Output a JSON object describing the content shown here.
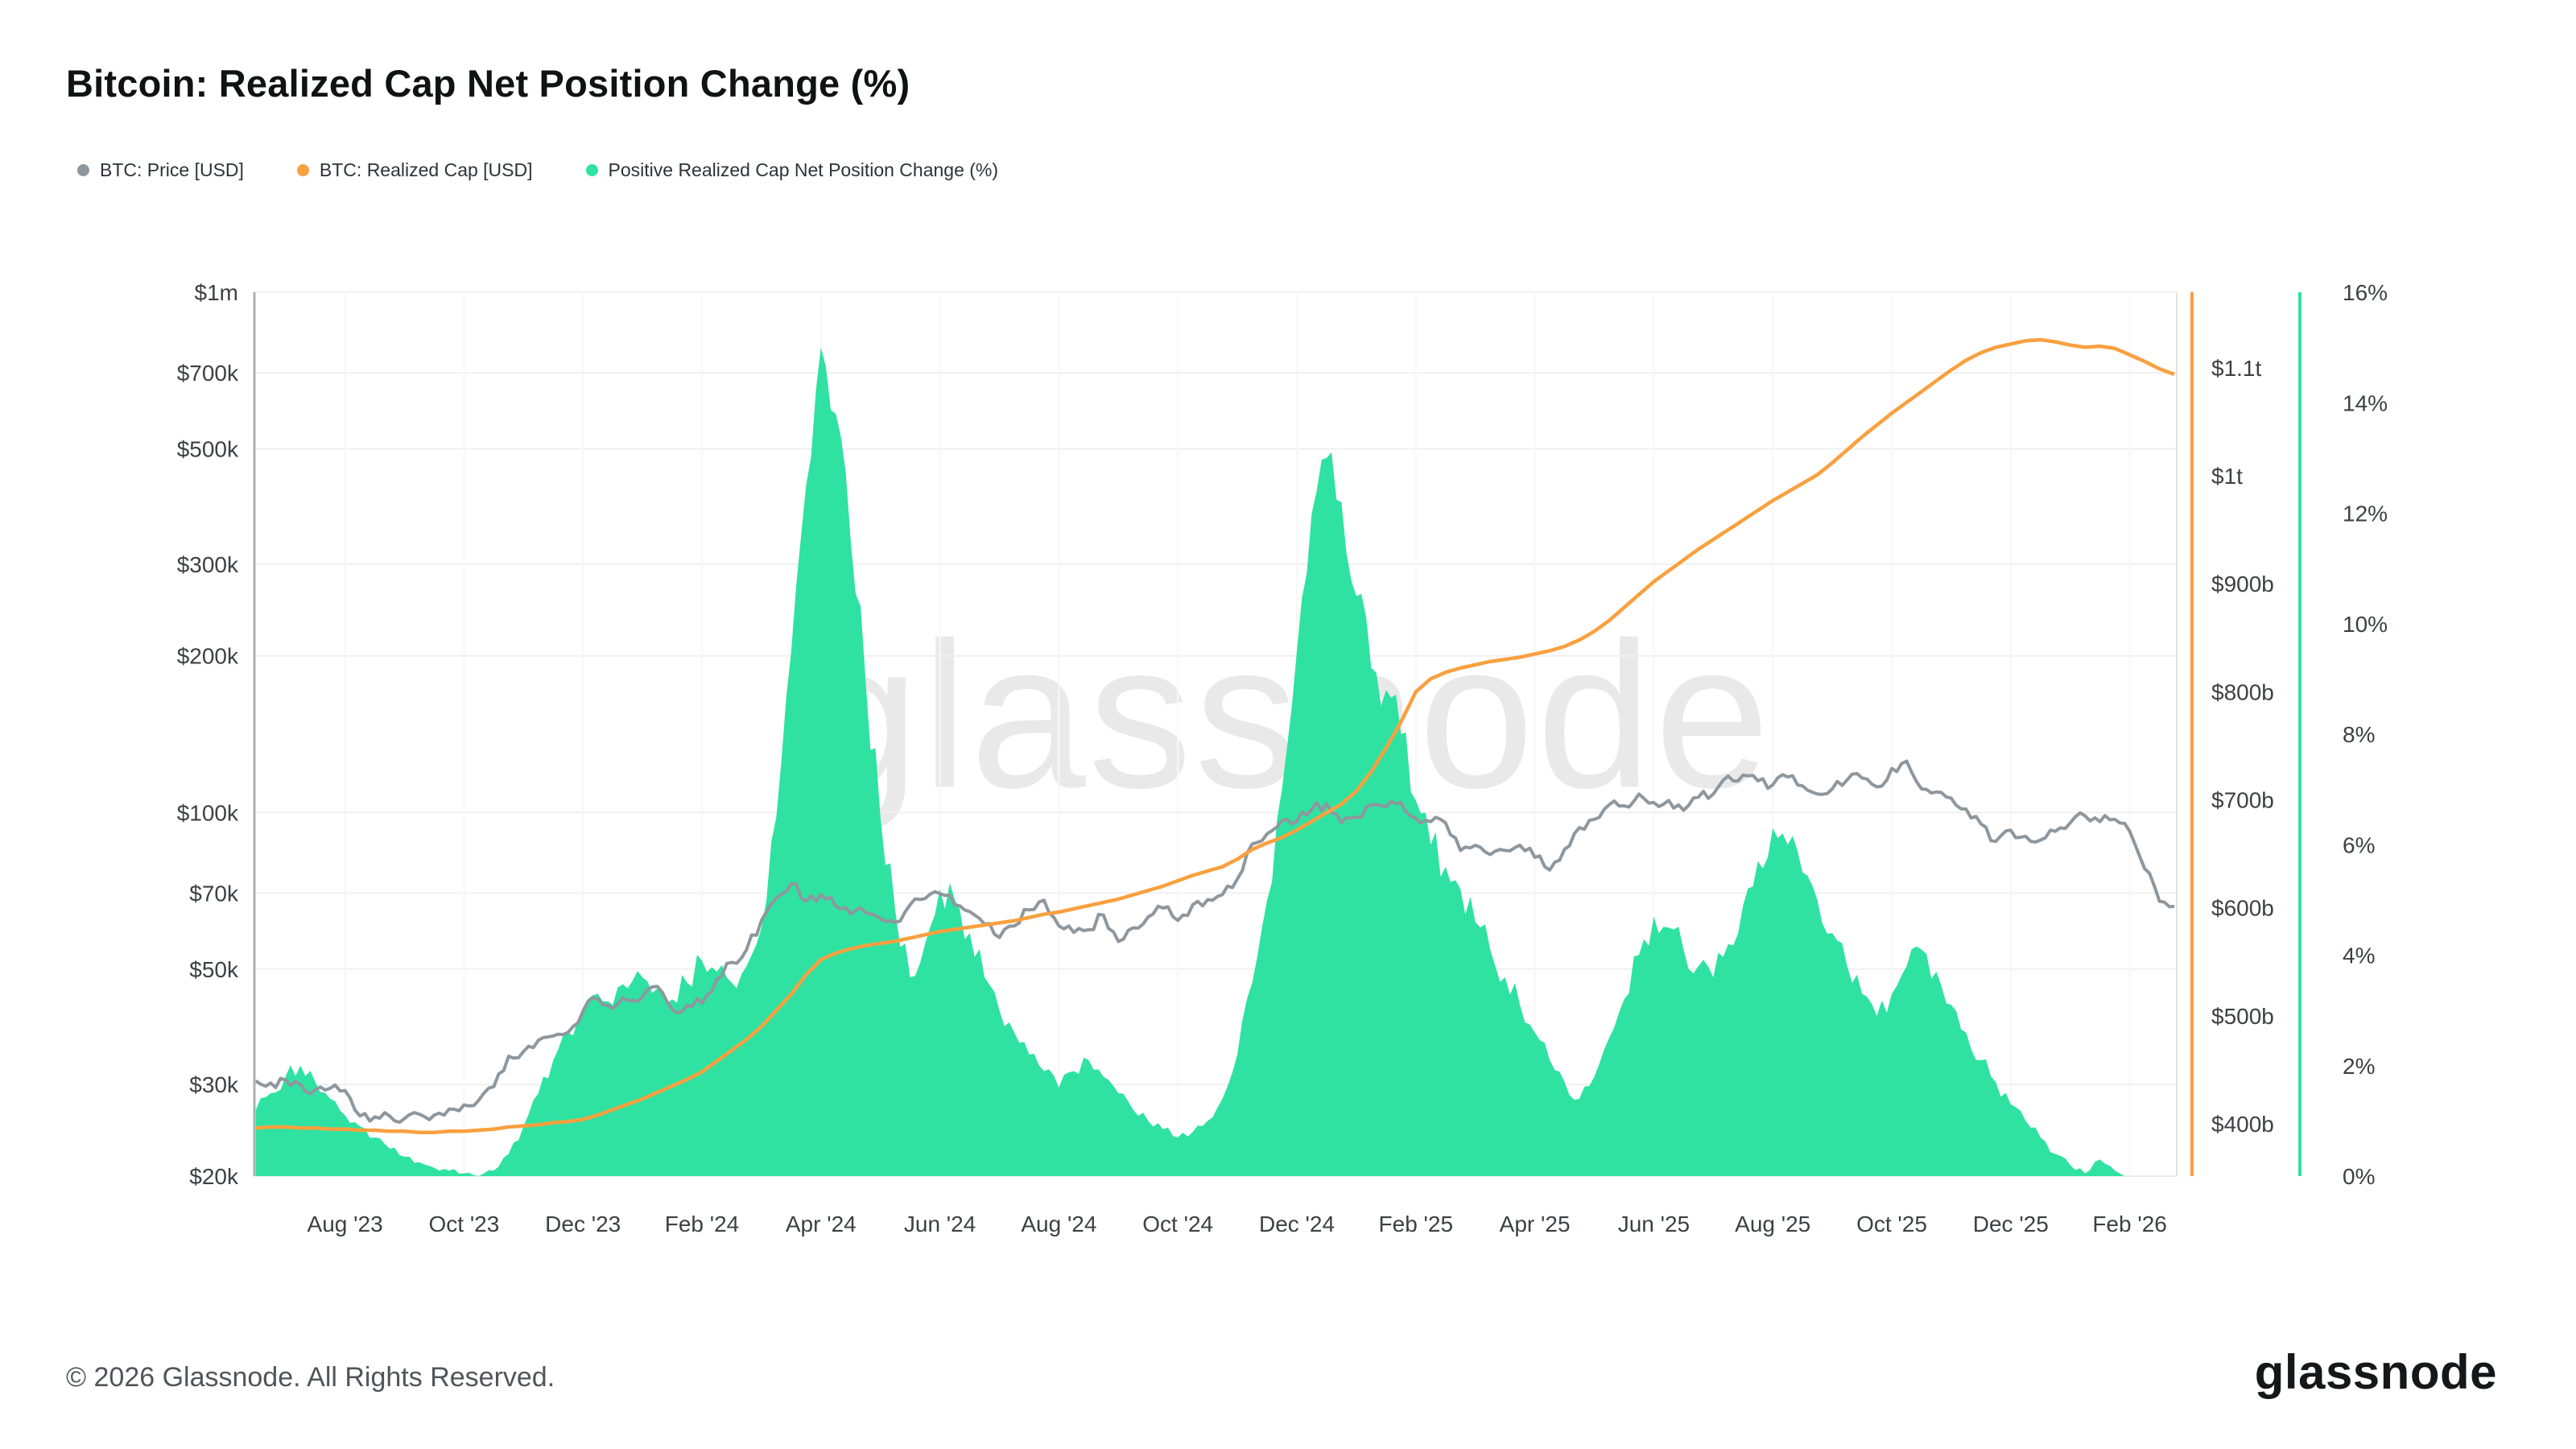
{
  "title": "Bitcoin: Realized Cap Net Position Change (%)",
  "watermark": "glassnode",
  "footer": {
    "copyright": "© 2026 Glassnode. All Rights Reserved.",
    "brand": "glassnode"
  },
  "legend": [
    {
      "label": "BTC: Price [USD]",
      "color": "#8e979e"
    },
    {
      "label": "BTC: Realized Cap [USD]",
      "color": "#f9a03f"
    },
    {
      "label": "Positive Realized Cap Net Position Change (%)",
      "color": "#2fe2a2"
    }
  ],
  "chart_data": {
    "type": "area+line",
    "title": "Bitcoin: Realized Cap Net Position Change (%)",
    "x_start_month": -0.5,
    "x_step_month": 0.25,
    "x_domain": [
      -0.524,
      31.79
    ],
    "x_ticks": [
      {
        "m": 1,
        "label": "Aug '23"
      },
      {
        "m": 3,
        "label": "Oct '23"
      },
      {
        "m": 5,
        "label": "Dec '23"
      },
      {
        "m": 7,
        "label": "Feb '24"
      },
      {
        "m": 9,
        "label": "Apr '24"
      },
      {
        "m": 11,
        "label": "Jun '24"
      },
      {
        "m": 13,
        "label": "Aug '24"
      },
      {
        "m": 15,
        "label": "Oct '24"
      },
      {
        "m": 17,
        "label": "Dec '24"
      },
      {
        "m": 19,
        "label": "Feb '25"
      },
      {
        "m": 21,
        "label": "Apr '25"
      },
      {
        "m": 23,
        "label": "Jun '25"
      },
      {
        "m": 25,
        "label": "Aug '25"
      },
      {
        "m": 27,
        "label": "Oct '25"
      },
      {
        "m": 29,
        "label": "Dec '25"
      },
      {
        "m": 31,
        "label": "Feb '26"
      }
    ],
    "left_axis": {
      "scale": "log",
      "unit": "USD",
      "min": 20000,
      "max": 1000000,
      "ticks": [
        {
          "v": 1000000,
          "label": "$1m"
        },
        {
          "v": 700000,
          "label": "$700k"
        },
        {
          "v": 500000,
          "label": "$500k"
        },
        {
          "v": 300000,
          "label": "$300k"
        },
        {
          "v": 200000,
          "label": "$200k"
        },
        {
          "v": 100000,
          "label": "$100k"
        },
        {
          "v": 70000,
          "label": "$70k"
        },
        {
          "v": 50000,
          "label": "$50k"
        },
        {
          "v": 30000,
          "label": "$30k"
        },
        {
          "v": 20000,
          "label": "$20k"
        }
      ]
    },
    "right_axis_cap": {
      "scale": "linear",
      "unit": "USD billions",
      "min": 351.5,
      "max": 1170,
      "ticks": [
        {
          "v": 1100,
          "label": "$1.1t"
        },
        {
          "v": 1000,
          "label": "$1t"
        },
        {
          "v": 900,
          "label": "$900b"
        },
        {
          "v": 800,
          "label": "$800b"
        },
        {
          "v": 700,
          "label": "$700b"
        },
        {
          "v": 600,
          "label": "$600b"
        },
        {
          "v": 500,
          "label": "$500b"
        },
        {
          "v": 400,
          "label": "$400b"
        }
      ]
    },
    "right_axis_pct": {
      "scale": "linear",
      "unit": "percent",
      "min": 0,
      "max": 16,
      "ticks": [
        {
          "v": 16,
          "label": "16%"
        },
        {
          "v": 14,
          "label": "14%"
        },
        {
          "v": 12,
          "label": "12%"
        },
        {
          "v": 10,
          "label": "10%"
        },
        {
          "v": 8,
          "label": "8%"
        },
        {
          "v": 6,
          "label": "6%"
        },
        {
          "v": 4,
          "label": "4%"
        },
        {
          "v": 2,
          "label": "2%"
        },
        {
          "v": 0,
          "label": "0%"
        }
      ]
    },
    "series": [
      {
        "name": "Positive Realized Cap Net Position Change (%)",
        "axis": "pct-right",
        "type": "area",
        "color": "#2fe2a2",
        "value_unit": "percent",
        "values": [
          1.2,
          1.5,
          1.8,
          2.0,
          1.7,
          1.4,
          1.1,
          0.9,
          0.7,
          0.5,
          0.35,
          0.25,
          0.15,
          0.1,
          0.05,
          0.0,
          0.1,
          0.4,
          0.9,
          1.5,
          2.1,
          2.6,
          3.0,
          3.3,
          3.1,
          3.4,
          3.6,
          3.4,
          3.2,
          3.5,
          3.9,
          3.7,
          3.5,
          3.8,
          4.5,
          6.5,
          9.5,
          12.5,
          15.0,
          13.8,
          11.5,
          9.0,
          6.5,
          4.8,
          3.6,
          4.2,
          5.2,
          5.0,
          4.4,
          3.6,
          3.0,
          2.6,
          2.2,
          1.9,
          1.6,
          1.9,
          2.1,
          1.8,
          1.5,
          1.2,
          1.0,
          0.85,
          0.7,
          0.8,
          1.0,
          1.4,
          2.2,
          3.5,
          5.0,
          7.0,
          9.5,
          12.0,
          13.0,
          12.2,
          10.5,
          9.2,
          8.8,
          8.0,
          6.8,
          6.0,
          5.6,
          5.2,
          4.6,
          4.1,
          3.6,
          3.1,
          2.6,
          2.1,
          1.7,
          1.4,
          1.8,
          2.5,
          3.2,
          4.0,
          4.7,
          4.5,
          4.1,
          3.8,
          3.6,
          4.2,
          4.9,
          5.7,
          6.3,
          6.0,
          5.5,
          5.0,
          4.4,
          3.8,
          3.3,
          2.9,
          3.3,
          3.8,
          4.1,
          3.7,
          3.1,
          2.6,
          2.1,
          1.7,
          1.3,
          1.0,
          0.7,
          0.4,
          0.2,
          0.05,
          0.3,
          0.1,
          0.0,
          0.0,
          0.0,
          0.0
        ]
      },
      {
        "name": "BTC: Price [USD]",
        "axis": "price-log-left",
        "type": "line",
        "color": "#8e979e",
        "value_unit": "USD thousands",
        "values": [
          30.5,
          30.2,
          30.6,
          30.0,
          29.3,
          29.5,
          29.2,
          26.1,
          26.0,
          26.1,
          25.8,
          26.3,
          26.2,
          26.9,
          27.4,
          28.0,
          29.7,
          34.0,
          34.7,
          36.5,
          37.2,
          37.8,
          41.5,
          43.8,
          42.0,
          43.5,
          44.2,
          46.3,
          41.8,
          42.6,
          43.0,
          47.8,
          51.5,
          54.5,
          62.0,
          68.5,
          73.0,
          67.5,
          69.5,
          66.0,
          63.8,
          64.2,
          62.5,
          61.5,
          66.5,
          68.3,
          69.8,
          66.5,
          64.5,
          61.0,
          57.5,
          60.5,
          65.0,
          67.8,
          60.5,
          58.8,
          59.5,
          63.5,
          56.5,
          60.0,
          63.0,
          65.5,
          62.0,
          66.5,
          68.0,
          69.5,
          74.5,
          87.0,
          91.0,
          96.5,
          96.0,
          101.5,
          104.0,
          95.5,
          98.0,
          103.5,
          102.5,
          104.5,
          97.5,
          96.0,
          95.5,
          84.5,
          86.5,
          83.0,
          84.5,
          86.5,
          82.0,
          77.5,
          85.0,
          93.5,
          97.0,
          103.5,
          103.0,
          108.5,
          104.5,
          105.5,
          101.0,
          107.0,
          108.5,
          117.5,
          118.0,
          115.0,
          113.0,
          117.0,
          112.5,
          108.5,
          111.0,
          115.5,
          116.5,
          112.0,
          121.5,
          125.5,
          111.0,
          109.5,
          106.5,
          101.5,
          95.0,
          88.0,
          92.5,
          90.0,
          88.5,
          92.0,
          95.5,
          98.5,
          96.0,
          97.0,
          92.0,
          78.0,
          67.5,
          66.0
        ]
      },
      {
        "name": "BTC: Realized Cap [USD]",
        "axis": "cap-right",
        "type": "line",
        "color": "#f9a03f",
        "value_unit": "USD billions",
        "values": [
          396,
          397,
          397,
          396,
          396,
          395,
          395,
          394,
          394,
          393,
          393,
          392,
          392,
          393,
          393,
          394,
          395,
          397,
          398,
          399,
          401,
          402,
          404,
          408,
          413,
          418,
          423,
          429,
          435,
          441,
          448,
          458,
          468,
          478,
          490,
          505,
          520,
          538,
          552,
          558,
          562,
          565,
          567,
          569,
          572,
          575,
          578,
          580,
          582,
          584,
          586,
          588,
          591,
          594,
          596,
          599,
          602,
          605,
          608,
          612,
          616,
          620,
          625,
          630,
          634,
          638,
          645,
          654,
          660,
          665,
          672,
          680,
          688,
          696,
          708,
          726,
          748,
          772,
          800,
          812,
          818,
          822,
          825,
          828,
          830,
          832,
          835,
          838,
          842,
          848,
          856,
          866,
          878,
          890,
          902,
          912,
          922,
          932,
          941,
          950,
          959,
          968,
          977,
          985,
          993,
          1001,
          1012,
          1024,
          1036,
          1047,
          1058,
          1068,
          1078,
          1088,
          1098,
          1107,
          1114,
          1119,
          1122,
          1125,
          1126,
          1124,
          1121,
          1119,
          1120,
          1118,
          1112,
          1106,
          1099,
          1094
        ]
      }
    ],
    "legend_position": "top-left",
    "grid": "faint"
  }
}
